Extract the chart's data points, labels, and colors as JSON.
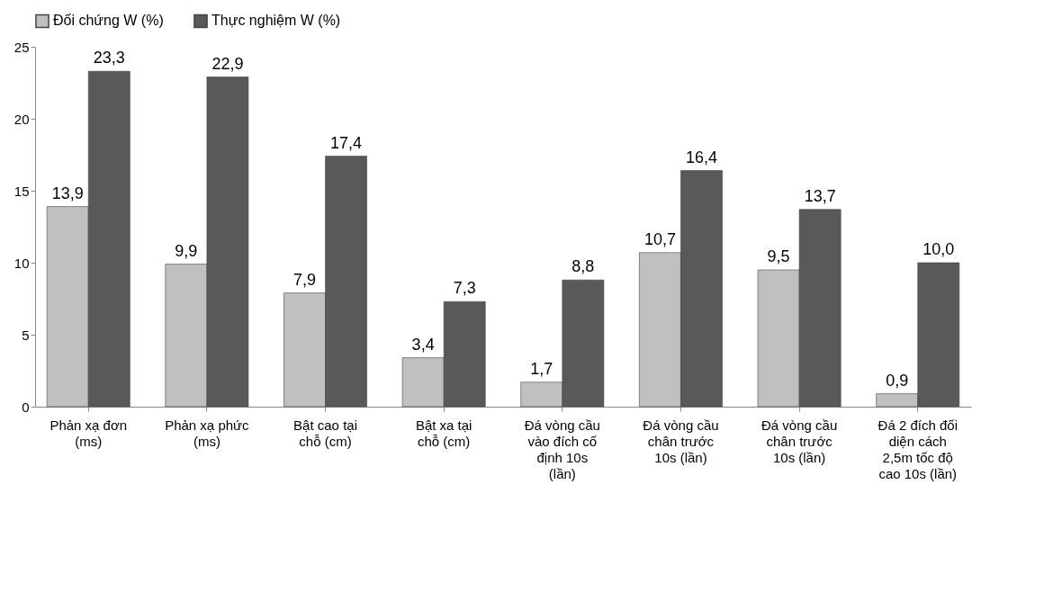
{
  "chart_data": {
    "type": "bar",
    "categories": [
      "Phản xạ đơn (ms)",
      "Phản xạ phức (ms)",
      "Bật cao tại chỗ (cm)",
      "Bật xa tại chỗ (cm)",
      "Đá vòng cầu vào đích cố định 10s (lần)",
      "Đá vòng cầu chân trước 10s (lần)",
      "Đá vòng cầu chân trước 10s (lần)",
      "Đá 2 đích đối diện cách 2,5m tốc độ cao 10s (lần)"
    ],
    "series": [
      {
        "name": "Đối chứng W (%)",
        "color": "#c0c0c0",
        "values": [
          13.9,
          9.9,
          7.9,
          3.4,
          1.7,
          10.7,
          9.5,
          0.9
        ],
        "value_labels": [
          "13,9",
          "9,9",
          "7,9",
          "3,4",
          "1,7",
          "10,7",
          "9,5",
          "0,9"
        ]
      },
      {
        "name": "Thực nghiệm W (%)",
        "color": "#595959",
        "values": [
          23.3,
          22.9,
          17.4,
          7.3,
          8.8,
          16.4,
          13.7,
          10.0
        ],
        "value_labels": [
          "23,3",
          "22,9",
          "17,4",
          "7,3",
          "8,8",
          "16,4",
          "13,7",
          "10,0"
        ]
      }
    ],
    "ylim": [
      0,
      25
    ],
    "yticks": [
      0,
      5,
      10,
      15,
      20,
      25
    ],
    "grid": false,
    "legend": "top"
  }
}
